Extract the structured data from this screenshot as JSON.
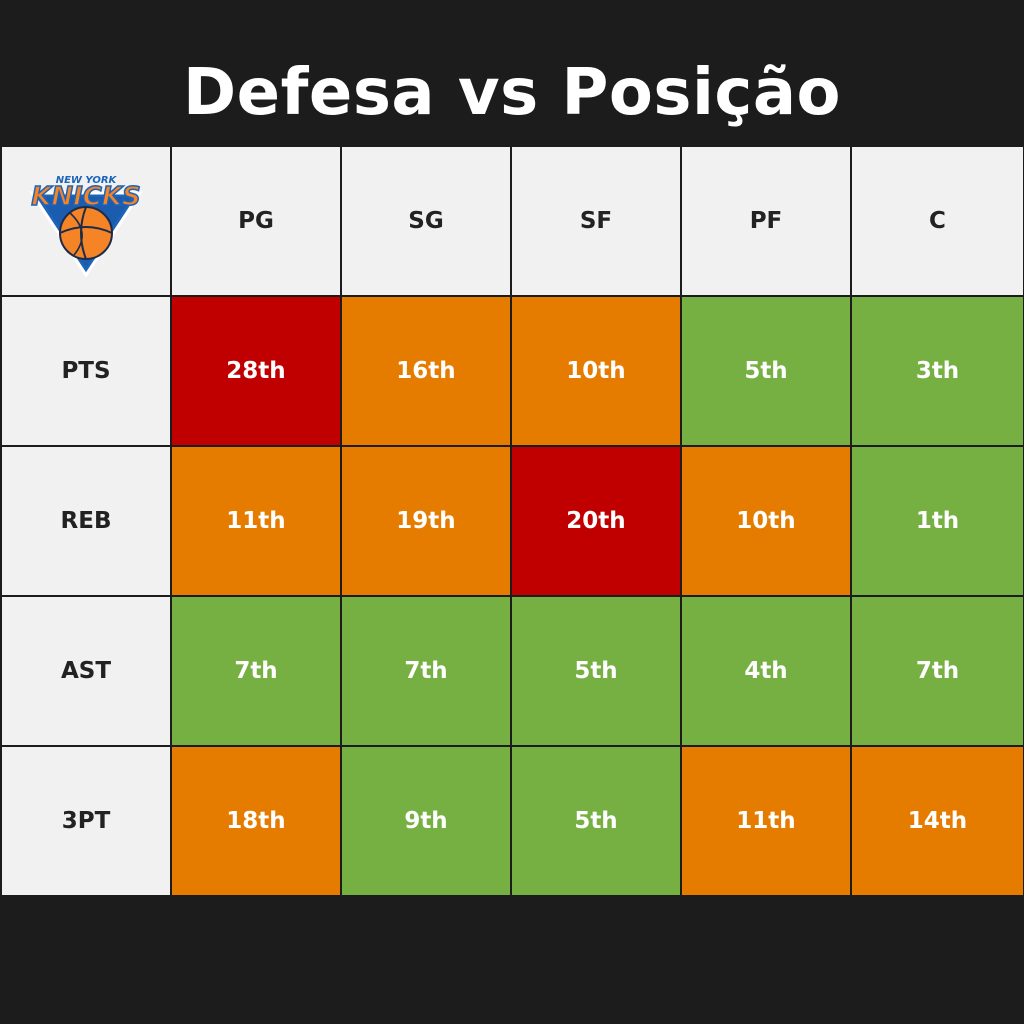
{
  "title": "Defesa vs Posição",
  "logo": {
    "icon": "new-york-knicks-logo-icon",
    "top_text": "NEW YORK",
    "main_text": "KNICKS"
  },
  "columns": [
    "PG",
    "SG",
    "SF",
    "PF",
    "C"
  ],
  "colors": {
    "red": "#c00000",
    "orange": "#e57c00",
    "green": "#77b042",
    "header_bg": "#f1f1f1",
    "background": "#1c1c1c"
  },
  "rows": [
    {
      "label": "PTS",
      "cells": [
        {
          "value": "28th",
          "color": "red"
        },
        {
          "value": "16th",
          "color": "orange"
        },
        {
          "value": "10th",
          "color": "orange"
        },
        {
          "value": "5th",
          "color": "green"
        },
        {
          "value": "3th",
          "color": "green"
        }
      ]
    },
    {
      "label": "REB",
      "cells": [
        {
          "value": "11th",
          "color": "orange"
        },
        {
          "value": "19th",
          "color": "orange"
        },
        {
          "value": "20th",
          "color": "red"
        },
        {
          "value": "10th",
          "color": "orange"
        },
        {
          "value": "1th",
          "color": "green"
        }
      ]
    },
    {
      "label": "AST",
      "cells": [
        {
          "value": "7th",
          "color": "green"
        },
        {
          "value": "7th",
          "color": "green"
        },
        {
          "value": "5th",
          "color": "green"
        },
        {
          "value": "4th",
          "color": "green"
        },
        {
          "value": "7th",
          "color": "green"
        }
      ]
    },
    {
      "label": "3PT",
      "cells": [
        {
          "value": "18th",
          "color": "orange"
        },
        {
          "value": "9th",
          "color": "green"
        },
        {
          "value": "5th",
          "color": "green"
        },
        {
          "value": "11th",
          "color": "orange"
        },
        {
          "value": "14th",
          "color": "orange"
        }
      ]
    }
  ]
}
